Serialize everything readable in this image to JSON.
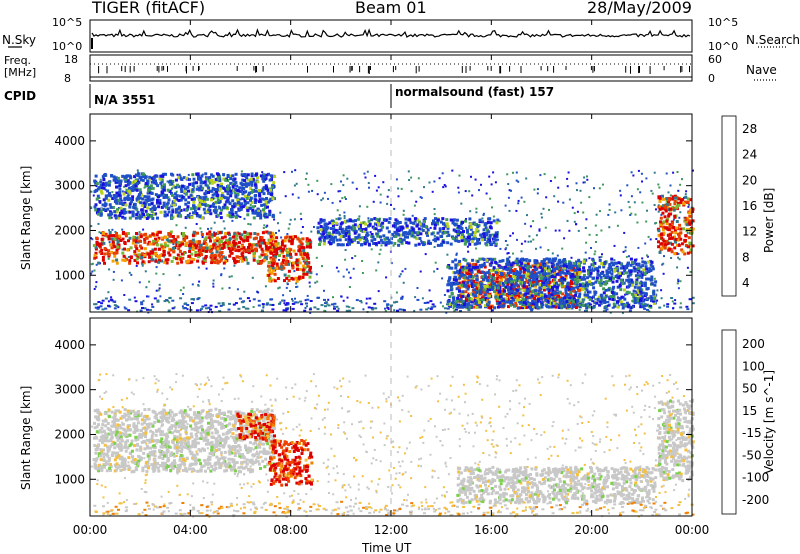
{
  "header": {
    "title_left": "TIGER (fitACF)",
    "title_center": "Beam 01",
    "title_right": "28/May/2009"
  },
  "top_panels": {
    "nsky_label": "N.Sky",
    "nsky_ticks": [
      "10^5",
      "10^0"
    ],
    "nsearch_label": "N.Search",
    "nsearch_ticks": [
      "10^5",
      "10^0"
    ],
    "freq_label_1": "Freq.",
    "freq_label_2": "[MHz]",
    "freq_ticks": [
      "18",
      "8"
    ],
    "nave_label": "Nave",
    "nave_ticks": [
      "60",
      "0"
    ],
    "cpid_label": "CPID",
    "cpid_segments": [
      {
        "text": "N/A 3551"
      },
      {
        "text": "normalsound (fast) 157"
      }
    ]
  },
  "x_axis": {
    "label": "Time UT",
    "ticks": [
      "00:00",
      "04:00",
      "08:00",
      "12:00",
      "16:00",
      "20:00",
      "00:00"
    ]
  },
  "chart_data": [
    {
      "type": "heatmap",
      "ylabel": "Slant Range [km]",
      "xlabel": "",
      "yticks": [
        1000,
        2000,
        3000,
        4000
      ],
      "ylim": [
        180,
        4600
      ],
      "xlim_hours": [
        0,
        24
      ],
      "colorbar": {
        "label": "Power [dB]",
        "ticks": [
          4,
          8,
          12,
          16,
          20,
          24,
          28
        ],
        "colors": [
          "#1a10e0",
          "#2050c8",
          "#2f7a8c",
          "#3f9a5a",
          "#7ab832",
          "#b8d21e",
          "#f5c800",
          "#f5a000",
          "#f07800",
          "#e84000",
          "#dd0000"
        ]
      },
      "regions": [
        {
          "t0": 0.1,
          "t1": 7.4,
          "r0": 1300,
          "r1": 2000,
          "level": "high"
        },
        {
          "t0": 7.0,
          "t1": 8.8,
          "r0": 900,
          "r1": 1900,
          "level": "high"
        },
        {
          "t0": 14.6,
          "t1": 19.5,
          "r0": 300,
          "r1": 1300,
          "level": "high"
        },
        {
          "t0": 22.6,
          "t1": 24.0,
          "r0": 1500,
          "r1": 2800,
          "level": "high"
        },
        {
          "t0": 0.1,
          "t1": 7.3,
          "r0": 2300,
          "r1": 3300,
          "level": "low"
        },
        {
          "t0": 9.0,
          "t1": 16.2,
          "r0": 1700,
          "r1": 2300,
          "level": "low"
        },
        {
          "t0": 14.2,
          "t1": 22.5,
          "r0": 300,
          "r1": 1400,
          "level": "low"
        }
      ]
    },
    {
      "type": "heatmap",
      "ylabel": "Slant Range [km]",
      "xlabel": "Time UT",
      "yticks": [
        1000,
        2000,
        3000,
        4000
      ],
      "ylim": [
        180,
        4600
      ],
      "xlim_hours": [
        0,
        24
      ],
      "colorbar": {
        "label": "Velocity [m s^-1]",
        "ticks": [
          200,
          100,
          50,
          15,
          -15,
          -50,
          -100,
          -200
        ],
        "colors": [
          "#2020c8",
          "#2e6fa8",
          "#3a9a3a",
          "#7ad048",
          "#c8c8c8",
          "#c8c8c8",
          "#f5c040",
          "#f08000",
          "#ee4400",
          "#dd0000"
        ]
      },
      "regions": [
        {
          "t0": 0.1,
          "t1": 7.3,
          "r0": 1200,
          "r1": 2600,
          "level": "near-zero"
        },
        {
          "t0": 7.1,
          "t1": 8.8,
          "r0": 900,
          "r1": 1900,
          "level": "negative"
        },
        {
          "t0": 5.8,
          "t1": 7.3,
          "r0": 1900,
          "r1": 2500,
          "level": "negative"
        },
        {
          "t0": 14.6,
          "t1": 22.5,
          "r0": 500,
          "r1": 1300,
          "level": "near-zero"
        },
        {
          "t0": 22.6,
          "t1": 24.0,
          "r0": 1000,
          "r1": 2800,
          "level": "near-zero"
        }
      ]
    }
  ]
}
